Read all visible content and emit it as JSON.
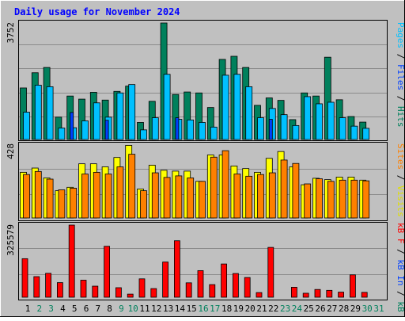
{
  "title": "Daily usage for November 2024",
  "panels": {
    "top": {
      "ymax_label": "3752"
    },
    "middle": {
      "ymax_label": "428"
    },
    "bottom": {
      "ymax_label": "325579"
    }
  },
  "legend": {
    "pages": "Pages",
    "files": "Files",
    "hits": "Hits",
    "sep": " / ",
    "sites": "Sites",
    "visits": "Visits",
    "kb_f": "kB F",
    "kb_in": "kB In",
    "kb_out": "kB Out"
  },
  "colors": {
    "background": "#c0c0c0",
    "title": "#0000ff",
    "hits": "#00805c",
    "files": "#00c0ff",
    "pages": "#0040ff",
    "visits": "#ffff00",
    "sites": "#ff8000",
    "kbf": "#ff0000",
    "weekday_label": "#000000",
    "weekend_label": "#00805c"
  },
  "chart_data": [
    {
      "type": "bar",
      "title": "Daily usage for November 2024",
      "ylabel": "Pages / Files / Hits",
      "categories": [
        "1",
        "2",
        "3",
        "4",
        "5",
        "6",
        "7",
        "8",
        "9",
        "10",
        "11",
        "12",
        "13",
        "14",
        "15",
        "16",
        "17",
        "18",
        "19",
        "20",
        "21",
        "22",
        "23",
        "24",
        "25",
        "26",
        "27",
        "28",
        "29",
        "30",
        "31"
      ],
      "weekend_days": [
        2,
        3,
        9,
        10,
        16,
        17,
        23,
        24,
        30,
        31
      ],
      "ylim": [
        0,
        3752
      ],
      "series": [
        {
          "name": "Hits",
          "values": [
            1660,
            2150,
            2320,
            720,
            1400,
            1300,
            1520,
            1270,
            1550,
            1720,
            550,
            1230,
            3752,
            1450,
            1530,
            1500,
            1030,
            2580,
            2680,
            2320,
            1100,
            1340,
            1260,
            640,
            1500,
            1400,
            2650,
            1280,
            740,
            560,
            0
          ]
        },
        {
          "name": "Files",
          "values": [
            880,
            1750,
            1700,
            370,
            380,
            600,
            1180,
            720,
            1500,
            1770,
            310,
            700,
            2100,
            650,
            630,
            550,
            400,
            2070,
            2100,
            1700,
            700,
            1000,
            800,
            450,
            1380,
            1150,
            1200,
            700,
            430,
            360,
            0
          ]
        },
        {
          "name": "Pages",
          "values": [
            0,
            0,
            0,
            0,
            870,
            0,
            0,
            620,
            0,
            0,
            0,
            0,
            0,
            700,
            0,
            0,
            0,
            0,
            0,
            0,
            0,
            650,
            0,
            0,
            0,
            0,
            0,
            0,
            0,
            0,
            0
          ]
        }
      ]
    },
    {
      "type": "bar",
      "ylabel": "Sites / Visits",
      "categories": [
        "1",
        "2",
        "3",
        "4",
        "5",
        "6",
        "7",
        "8",
        "9",
        "10",
        "11",
        "12",
        "13",
        "14",
        "15",
        "16",
        "17",
        "18",
        "19",
        "20",
        "21",
        "22",
        "23",
        "24",
        "25",
        "26",
        "27",
        "28",
        "29",
        "30",
        "31"
      ],
      "ylim": [
        0,
        428
      ],
      "series": [
        {
          "name": "Visits",
          "values": [
            268,
            293,
            235,
            160,
            180,
            318,
            318,
            300,
            355,
            426,
            170,
            310,
            280,
            275,
            275,
            215,
            370,
            370,
            305,
            290,
            268,
            350,
            390,
            300,
            195,
            233,
            225,
            240,
            240,
            222,
            0
          ]
        },
        {
          "name": "Sites",
          "values": [
            255,
            273,
            228,
            165,
            175,
            258,
            268,
            258,
            300,
            374,
            160,
            265,
            238,
            247,
            235,
            215,
            357,
            395,
            258,
            245,
            255,
            265,
            340,
            320,
            200,
            230,
            215,
            222,
            222,
            218,
            0
          ]
        }
      ]
    },
    {
      "type": "bar",
      "ylabel": "kB F / kB In / kB Out",
      "categories": [
        "1",
        "2",
        "3",
        "4",
        "5",
        "6",
        "7",
        "8",
        "9",
        "10",
        "11",
        "12",
        "13",
        "14",
        "15",
        "16",
        "17",
        "18",
        "19",
        "20",
        "21",
        "22",
        "23",
        "24",
        "25",
        "26",
        "27",
        "28",
        "29",
        "30",
        "31"
      ],
      "ylim": [
        0,
        325579
      ],
      "series": [
        {
          "name": "kB F",
          "values": [
            174000,
            93000,
            108000,
            66000,
            325579,
            77000,
            50000,
            230000,
            43000,
            14000,
            83000,
            39000,
            159000,
            255000,
            65000,
            120000,
            57000,
            150000,
            107000,
            89000,
            21000,
            225000,
            0,
            45000,
            18000,
            35000,
            31000,
            23000,
            101000,
            22000,
            0
          ]
        }
      ]
    }
  ]
}
